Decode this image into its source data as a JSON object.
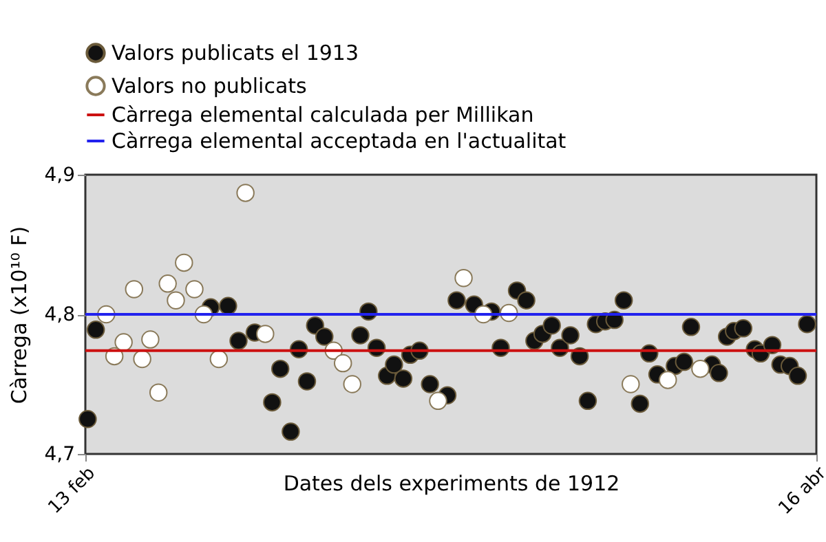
{
  "chart_data": {
    "type": "scatter",
    "xlabel": "Dates dels experiments de 1912",
    "ylabel": "Càrrega (x10¹⁰ F)",
    "xlim": [
      "1912-02-13",
      "1912-04-16"
    ],
    "xticks": [
      {
        "value": "1912-02-13",
        "label": "13 feb"
      },
      {
        "value": "1912-04-16",
        "label": "16 abr"
      }
    ],
    "ylim": [
      4.7,
      4.9
    ],
    "yticks": [
      {
        "value": 4.7,
        "label": "4,7"
      },
      {
        "value": 4.8,
        "label": "4,8"
      },
      {
        "value": 4.9,
        "label": "4,9"
      }
    ],
    "marker": "circle",
    "legend": "top",
    "series": [
      {
        "name": "Valors publicats el 1913",
        "color": "#111111",
        "x": [
          "1912-02-13T04:48",
          "1912-02-13T21:36",
          "1912-02-23T19:12",
          "1912-02-25T07:12",
          "1912-02-26T04:48",
          "1912-02-27T14:24",
          "1912-02-29T02:24",
          "1912-02-29T19:12",
          "1912-03-01T16:48",
          "1912-03-02T09:36",
          "1912-03-03T02:24",
          "1912-03-03T19:12",
          "1912-03-04T14:24",
          "1912-03-07T16:48",
          "1912-03-08T09:36",
          "1912-03-09T02:24",
          "1912-03-10T00:00",
          "1912-03-10T14:24",
          "1912-03-11T09:36",
          "1912-03-12T00:00",
          "1912-03-12T19:12",
          "1912-03-13T16:48",
          "1912-03-15T04:48",
          "1912-03-16T00:00",
          "1912-03-17T12:00",
          "1912-03-19T00:00",
          "1912-03-19T19:12",
          "1912-03-21T04:48",
          "1912-03-22T00:00",
          "1912-03-22T16:48",
          "1912-03-23T09:36",
          "1912-03-24T04:48",
          "1912-03-24T21:36",
          "1912-03-25T19:12",
          "1912-03-26T14:24",
          "1912-03-27T07:12",
          "1912-03-28T00:00",
          "1912-03-28T19:12",
          "1912-03-29T14:24",
          "1912-03-30T09:36",
          "1912-03-31T19:12",
          "1912-04-01T14:24",
          "1912-04-02T07:12",
          "1912-04-03T19:12",
          "1912-04-04T14:24",
          "1912-04-05T04:48",
          "1912-04-07T00:00",
          "1912-04-07T14:24",
          "1912-04-08T07:12",
          "1912-04-08T21:36",
          "1912-04-09T16:48",
          "1912-04-10T16:48",
          "1912-04-11T04:48",
          "1912-04-12T04:48",
          "1912-04-12T21:36",
          "1912-04-13T16:48",
          "1912-04-14T09:36",
          "1912-04-15T04:48"
        ],
        "values": [
          4.725,
          4.789,
          4.805,
          4.806,
          4.781,
          4.787,
          4.737,
          4.761,
          4.716,
          4.775,
          4.752,
          4.792,
          4.784,
          4.785,
          4.802,
          4.776,
          4.756,
          4.764,
          4.754,
          4.771,
          4.774,
          4.75,
          4.742,
          4.81,
          4.807,
          4.802,
          4.776,
          4.817,
          4.81,
          4.781,
          4.786,
          4.792,
          4.776,
          4.785,
          4.77,
          4.738,
          4.793,
          4.795,
          4.796,
          4.81,
          4.736,
          4.772,
          4.757,
          4.763,
          4.766,
          4.791,
          4.764,
          4.758,
          4.784,
          4.788,
          4.79,
          4.775,
          4.772,
          4.778,
          4.764,
          4.763,
          4.756,
          4.793
        ]
      },
      {
        "name": "Valors no publicats",
        "color": "#ffffff",
        "x": [
          "1912-02-14T19:12",
          "1912-02-15T12:00",
          "1912-02-16T07:12",
          "1912-02-17T04:48",
          "1912-02-17T21:36",
          "1912-02-18T14:24",
          "1912-02-19T07:12",
          "1912-02-20T02:24",
          "1912-02-20T19:12",
          "1912-02-21T12:00",
          "1912-02-22T09:36",
          "1912-02-23T04:48",
          "1912-02-24T12:00",
          "1912-02-26T19:12",
          "1912-02-28T12:00",
          "1912-03-05T09:36",
          "1912-03-06T04:48",
          "1912-03-07T00:00",
          "1912-03-14T09:36",
          "1912-03-16T14:24",
          "1912-03-18T07:12",
          "1912-03-20T12:00",
          "1912-03-31T00:00",
          "1912-04-03T04:48",
          "1912-04-06T00:00"
        ],
        "values": [
          4.8,
          4.77,
          4.78,
          4.818,
          4.768,
          4.782,
          4.744,
          4.822,
          4.81,
          4.837,
          4.818,
          4.8,
          4.768,
          4.887,
          4.786,
          4.774,
          4.765,
          4.75,
          4.738,
          4.826,
          4.8,
          4.801,
          4.75,
          4.753,
          4.761
        ]
      }
    ],
    "ref_lines": [
      {
        "axis": "y",
        "value": 4.774,
        "label": "Càrrega elemental calculada per Millikan",
        "color": "#cc1111"
      },
      {
        "axis": "y",
        "value": 4.8,
        "label": "Càrrega elemental acceptada en l'actualitat",
        "color": "#2222ee"
      }
    ]
  }
}
